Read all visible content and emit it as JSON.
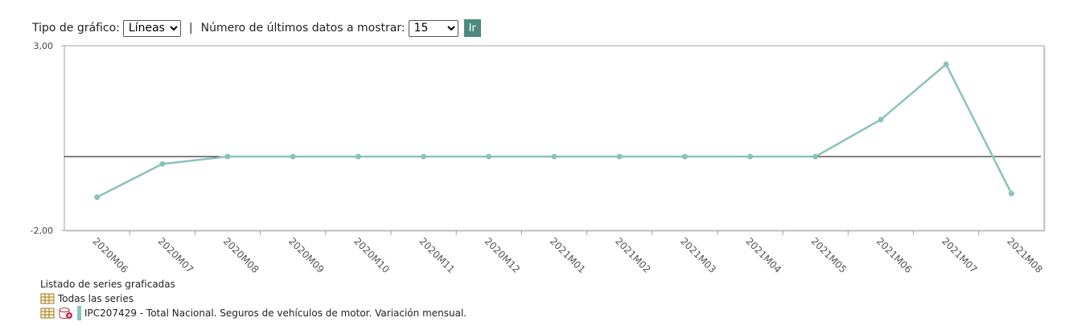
{
  "toolbar": {
    "chart_type_label": "Tipo de gráfico:",
    "chart_type_value": "Líneas",
    "separator": "|",
    "count_label": "Número de últimos datos a mostrar:",
    "count_value": "15",
    "go_button": "Ir"
  },
  "chart_data": {
    "type": "line",
    "categories": [
      "2020M06",
      "2020M07",
      "2020M08",
      "2020M09",
      "2020M10",
      "2020M11",
      "2020M12",
      "2021M01",
      "2021M02",
      "2021M03",
      "2021M04",
      "2021M05",
      "2021M06",
      "2021M07",
      "2021M08"
    ],
    "series": [
      {
        "name": "IPC207429 - Total Nacional. Seguros de vehículos de motor. Variación mensual.",
        "color": "#8cc2bd",
        "values": [
          -1.1,
          -0.2,
          0,
          0,
          0,
          0,
          0,
          0,
          0,
          0,
          0,
          0,
          1.0,
          2.5,
          -1.0
        ]
      }
    ],
    "ylim": [
      -2,
      3
    ],
    "yticks": [
      {
        "value": -2,
        "label": "-2,00"
      },
      {
        "value": 3,
        "label": "3,00"
      }
    ]
  },
  "series_list": {
    "title": "Listado de series graficadas",
    "all_series": "Todas las series"
  }
}
